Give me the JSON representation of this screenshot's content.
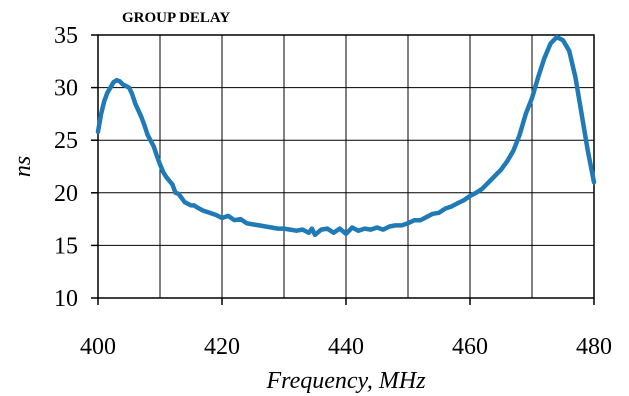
{
  "chart_data": {
    "type": "line",
    "title": "GROUP DELAY",
    "xlabel": "Frequency, MHz",
    "ylabel": "ns",
    "xlim": [
      400,
      480
    ],
    "ylim": [
      10,
      35
    ],
    "xticks": [
      400,
      420,
      440,
      460,
      480
    ],
    "yticks": [
      10,
      15,
      20,
      25,
      30,
      35
    ],
    "x_minor_step": 10,
    "grid": true,
    "legend": "none",
    "series": [
      {
        "color": "#1f7ab5",
        "points": [
          [
            400,
            25.8
          ],
          [
            400.5,
            27.5
          ],
          [
            401,
            28.7
          ],
          [
            401.5,
            29.5
          ],
          [
            402,
            30.0
          ],
          [
            402.5,
            30.5
          ],
          [
            403,
            30.7
          ],
          [
            403.5,
            30.6
          ],
          [
            404,
            30.3
          ],
          [
            405,
            30.0
          ],
          [
            405.5,
            29.4
          ],
          [
            406,
            28.5
          ],
          [
            407,
            27.2
          ],
          [
            407.5,
            26.4
          ],
          [
            408,
            25.5
          ],
          [
            409,
            24.4
          ],
          [
            409.5,
            23.5
          ],
          [
            410,
            22.7
          ],
          [
            410.5,
            22.0
          ],
          [
            411,
            21.5
          ],
          [
            412,
            20.8
          ],
          [
            412.5,
            20.0
          ],
          [
            413,
            19.9
          ],
          [
            413.5,
            19.5
          ],
          [
            414,
            19.1
          ],
          [
            415,
            18.8
          ],
          [
            415.5,
            18.8
          ],
          [
            416,
            18.6
          ],
          [
            417,
            18.3
          ],
          [
            418,
            18.1
          ],
          [
            419,
            17.9
          ],
          [
            420,
            17.6
          ],
          [
            421,
            17.8
          ],
          [
            422,
            17.4
          ],
          [
            423,
            17.5
          ],
          [
            424,
            17.1
          ],
          [
            425,
            17.0
          ],
          [
            426,
            16.9
          ],
          [
            427,
            16.8
          ],
          [
            428,
            16.7
          ],
          [
            429,
            16.6
          ],
          [
            430,
            16.6
          ],
          [
            431,
            16.5
          ],
          [
            432,
            16.4
          ],
          [
            433,
            16.5
          ],
          [
            434,
            16.2
          ],
          [
            434.5,
            16.6
          ],
          [
            435,
            16.0
          ],
          [
            436,
            16.5
          ],
          [
            437,
            16.6
          ],
          [
            438,
            16.2
          ],
          [
            439,
            16.6
          ],
          [
            440,
            16.1
          ],
          [
            441,
            16.7
          ],
          [
            442,
            16.4
          ],
          [
            443,
            16.6
          ],
          [
            444,
            16.5
          ],
          [
            445,
            16.7
          ],
          [
            446,
            16.5
          ],
          [
            447,
            16.8
          ],
          [
            448,
            16.9
          ],
          [
            449,
            16.9
          ],
          [
            450,
            17.1
          ],
          [
            451,
            17.4
          ],
          [
            452,
            17.4
          ],
          [
            453,
            17.7
          ],
          [
            454,
            18.0
          ],
          [
            455,
            18.1
          ],
          [
            456,
            18.5
          ],
          [
            457,
            18.7
          ],
          [
            458,
            19.0
          ],
          [
            459,
            19.3
          ],
          [
            460,
            19.7
          ],
          [
            461,
            20.0
          ],
          [
            462,
            20.4
          ],
          [
            463,
            21.0
          ],
          [
            464,
            21.6
          ],
          [
            465,
            22.2
          ],
          [
            466,
            23.0
          ],
          [
            467,
            24.0
          ],
          [
            468,
            25.5
          ],
          [
            469,
            27.5
          ],
          [
            470,
            29.0
          ],
          [
            471,
            31.0
          ],
          [
            472,
            32.8
          ],
          [
            473,
            34.2
          ],
          [
            474,
            34.8
          ],
          [
            475,
            34.5
          ],
          [
            476,
            33.5
          ],
          [
            477,
            31.0
          ],
          [
            478,
            27.5
          ],
          [
            479,
            24.0
          ],
          [
            480,
            21.0
          ]
        ]
      }
    ]
  }
}
